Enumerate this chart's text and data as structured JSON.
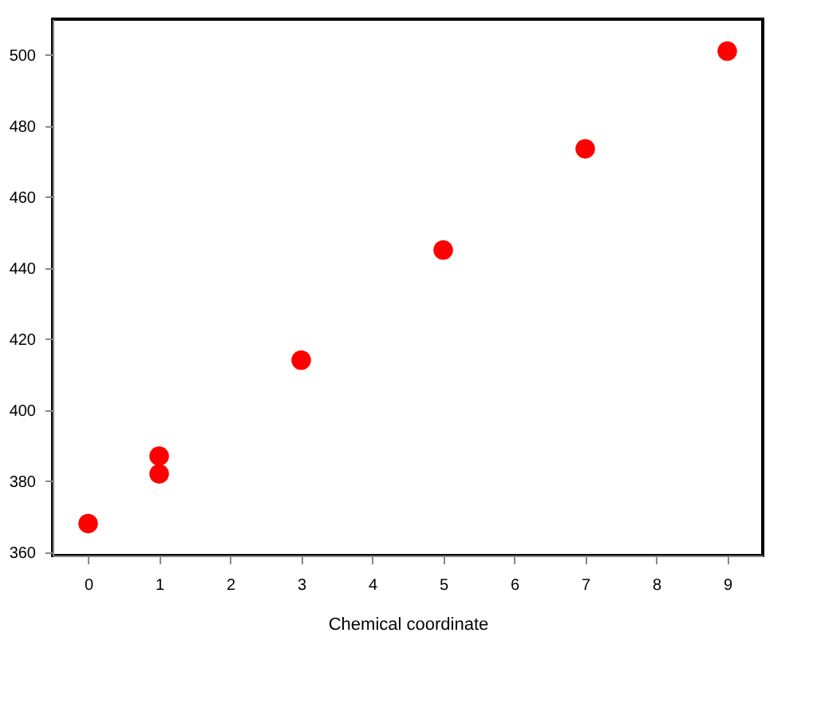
{
  "chart_data": {
    "type": "scatter",
    "xlabel": "Chemical coordinate",
    "x": [
      0,
      1,
      1,
      3,
      5,
      7,
      9
    ],
    "series": [
      {
        "color": "#ff0000",
        "values": [
          368,
          387,
          382,
          414,
          445,
          473.5,
          501
        ]
      }
    ],
    "xlim": [
      -0.5,
      9.5
    ],
    "xticks": [
      0,
      1,
      2,
      3,
      4,
      5,
      6,
      7,
      8,
      9
    ],
    "ylim": [
      359,
      510
    ],
    "yticks": [
      360,
      380,
      400,
      420,
      440,
      460,
      480,
      500
    ],
    "grid": false,
    "marker": "circle"
  }
}
